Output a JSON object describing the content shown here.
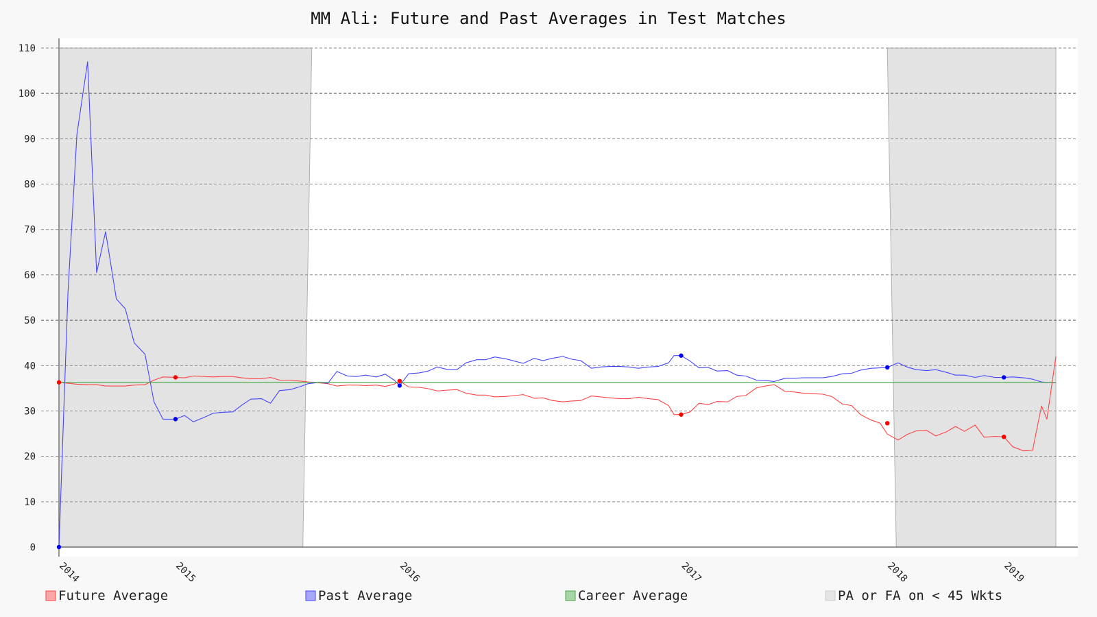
{
  "chart_data": {
    "type": "line",
    "title": "MM Ali: Future and Past Averages in Test Matches",
    "xlabel": "",
    "ylabel": "",
    "ylim": [
      0,
      110
    ],
    "yticks": [
      0,
      10,
      20,
      30,
      40,
      50,
      60,
      70,
      80,
      90,
      100,
      110
    ],
    "xlim": [
      2014.0,
      2019.56
    ],
    "xticks": [
      {
        "value": 2014.0,
        "label": "2014"
      },
      {
        "value": 2014.65,
        "label": "2015"
      },
      {
        "value": 2015.9,
        "label": "2016"
      },
      {
        "value": 2017.47,
        "label": "2017"
      },
      {
        "value": 2018.62,
        "label": "2018"
      },
      {
        "value": 2019.27,
        "label": "2019"
      }
    ],
    "grid": true,
    "legend_position": "bottom",
    "series": [
      {
        "name": "Future Average",
        "color": "#ff4444",
        "x": [
          2014.0,
          2014.05,
          2014.1,
          2014.16,
          2014.21,
          2014.26,
          2014.32,
          2014.37,
          2014.42,
          2014.48,
          2014.53,
          2014.58,
          2014.65,
          2014.7,
          2014.75,
          2014.81,
          2014.86,
          2014.91,
          2014.97,
          2015.02,
          2015.07,
          2015.13,
          2015.18,
          2015.23,
          2015.29,
          2015.34,
          2015.39,
          2015.45,
          2015.5,
          2015.55,
          2015.61,
          2015.66,
          2015.71,
          2015.77,
          2015.82,
          2015.87,
          2015.9,
          2015.95,
          2016.01,
          2016.06,
          2016.11,
          2016.17,
          2016.22,
          2016.27,
          2016.33,
          2016.38,
          2016.43,
          2016.49,
          2016.54,
          2016.59,
          2016.65,
          2016.7,
          2016.75,
          2016.81,
          2016.86,
          2016.91,
          2016.97,
          2017.02,
          2017.07,
          2017.13,
          2017.18,
          2017.23,
          2017.29,
          2017.34,
          2017.4,
          2017.43,
          2017.47,
          2017.52,
          2017.57,
          2017.62,
          2017.67,
          2017.73,
          2017.78,
          2017.83,
          2017.89,
          2017.94,
          2017.99,
          2018.05,
          2018.1,
          2018.15,
          2018.21,
          2018.26,
          2018.31,
          2018.37,
          2018.42,
          2018.47,
          2018.53,
          2018.58,
          2018.62,
          2018.68,
          2018.73,
          2018.78,
          2018.84,
          2018.89,
          2018.95,
          2019.0,
          2019.05,
          2019.11,
          2019.16,
          2019.22,
          2019.27,
          2019.32,
          2019.38,
          2019.43,
          2019.48,
          2019.51,
          2019.56
        ],
        "y": [
          36.3,
          36.1,
          35.9,
          35.8,
          35.8,
          35.5,
          35.5,
          35.5,
          35.7,
          35.8,
          36.8,
          37.5,
          37.4,
          37.3,
          37.7,
          37.6,
          37.5,
          37.6,
          37.6,
          37.3,
          37.1,
          37.1,
          37.4,
          36.8,
          36.8,
          36.6,
          36.4,
          36.2,
          36.0,
          35.5,
          35.7,
          35.7,
          35.6,
          35.7,
          35.4,
          35.9,
          36.6,
          35.3,
          35.2,
          34.9,
          34.4,
          34.6,
          34.7,
          33.9,
          33.5,
          33.5,
          33.1,
          33.2,
          33.4,
          33.6,
          32.8,
          32.9,
          32.3,
          32.0,
          32.2,
          32.3,
          33.3,
          33.1,
          32.9,
          32.7,
          32.7,
          33.0,
          32.7,
          32.5,
          31.2,
          29.2,
          29.2,
          29.8,
          31.7,
          31.4,
          32.1,
          32.0,
          33.2,
          33.4,
          35.1,
          35.5,
          35.8,
          34.3,
          34.2,
          33.9,
          33.8,
          33.7,
          33.2,
          31.5,
          31.2,
          29.2,
          28.0,
          27.3,
          24.9,
          23.6,
          24.8,
          25.6,
          25.7,
          24.5,
          25.4,
          26.6,
          25.5,
          26.9,
          24.2,
          24.4,
          24.3,
          22.1,
          21.2,
          21.3,
          31.1,
          28.2,
          42.0
        ],
        "markers": [
          [
            2014.0,
            36.3
          ],
          [
            2014.65,
            37.4
          ],
          [
            2015.9,
            36.6
          ],
          [
            2017.47,
            29.2
          ],
          [
            2018.62,
            27.3
          ],
          [
            2019.27,
            24.3
          ]
        ]
      },
      {
        "name": "Past Average",
        "color": "#4444ff",
        "x": [
          2014.0,
          2014.05,
          2014.1,
          2014.16,
          2014.21,
          2014.26,
          2014.32,
          2014.37,
          2014.42,
          2014.48,
          2014.53,
          2014.58,
          2014.65,
          2014.7,
          2014.75,
          2014.81,
          2014.86,
          2014.91,
          2014.97,
          2015.02,
          2015.07,
          2015.13,
          2015.18,
          2015.23,
          2015.29,
          2015.34,
          2015.39,
          2015.45,
          2015.5,
          2015.55,
          2015.61,
          2015.66,
          2015.71,
          2015.77,
          2015.82,
          2015.87,
          2015.9,
          2015.95,
          2016.01,
          2016.06,
          2016.11,
          2016.17,
          2016.22,
          2016.27,
          2016.33,
          2016.38,
          2016.43,
          2016.49,
          2016.54,
          2016.59,
          2016.65,
          2016.7,
          2016.75,
          2016.81,
          2016.86,
          2016.91,
          2016.97,
          2017.02,
          2017.07,
          2017.13,
          2017.18,
          2017.23,
          2017.29,
          2017.34,
          2017.4,
          2017.43,
          2017.47,
          2017.52,
          2017.57,
          2017.62,
          2017.67,
          2017.73,
          2017.78,
          2017.83,
          2017.89,
          2017.94,
          2017.99,
          2018.05,
          2018.1,
          2018.15,
          2018.21,
          2018.26,
          2018.31,
          2018.37,
          2018.42,
          2018.47,
          2018.53,
          2018.58,
          2018.62,
          2018.68,
          2018.73,
          2018.78,
          2018.84,
          2018.89,
          2018.95,
          2019.0,
          2019.05,
          2019.11,
          2019.16,
          2019.22,
          2019.27,
          2019.32,
          2019.38,
          2019.43,
          2019.48,
          2019.51,
          2019.56
        ],
        "y": [
          0.0,
          56.0,
          91.0,
          107.0,
          60.5,
          69.5,
          54.7,
          52.5,
          45.0,
          42.5,
          32.0,
          28.2,
          28.2,
          29.0,
          27.6,
          28.6,
          29.5,
          29.7,
          29.8,
          31.3,
          32.6,
          32.7,
          31.7,
          34.5,
          34.7,
          35.3,
          36.0,
          36.3,
          36.1,
          38.7,
          37.7,
          37.6,
          37.9,
          37.5,
          38.1,
          36.8,
          35.6,
          38.2,
          38.4,
          38.8,
          39.7,
          39.1,
          39.1,
          40.6,
          41.3,
          41.3,
          41.9,
          41.5,
          41.0,
          40.5,
          41.6,
          41.1,
          41.6,
          42.0,
          41.4,
          41.1,
          39.4,
          39.7,
          39.8,
          39.8,
          39.7,
          39.4,
          39.7,
          39.8,
          40.6,
          42.2,
          42.2,
          41.0,
          39.5,
          39.6,
          38.8,
          38.9,
          37.9,
          37.7,
          36.8,
          36.7,
          36.5,
          37.2,
          37.2,
          37.3,
          37.3,
          37.3,
          37.6,
          38.2,
          38.3,
          39.0,
          39.4,
          39.5,
          39.6,
          40.6,
          39.7,
          39.1,
          38.9,
          39.1,
          38.5,
          37.9,
          37.9,
          37.4,
          37.8,
          37.4,
          37.4,
          37.5,
          37.3,
          37.0,
          36.4,
          36.3,
          36.3
        ],
        "markers": [
          [
            2014.0,
            0.0
          ],
          [
            2014.65,
            28.2
          ],
          [
            2015.9,
            35.6
          ],
          [
            2017.47,
            42.2
          ],
          [
            2018.62,
            39.6
          ],
          [
            2019.27,
            37.4
          ]
        ]
      },
      {
        "name": "Career Average",
        "color": "#44aa44",
        "x": [
          2014.0,
          2019.56
        ],
        "y": [
          36.3,
          36.3
        ]
      }
    ],
    "shaded_regions": {
      "name": "PA or FA on < 45 Wkts",
      "color": "#e3e3e3",
      "regions": [
        {
          "left_bottom": 2014.0,
          "left_top": 2014.0,
          "right_bottom": 2015.36,
          "right_top": 2015.41
        },
        {
          "left_bottom": 2018.67,
          "left_top": 2018.62,
          "right_bottom": 2019.56,
          "right_top": 2019.56
        }
      ]
    }
  }
}
